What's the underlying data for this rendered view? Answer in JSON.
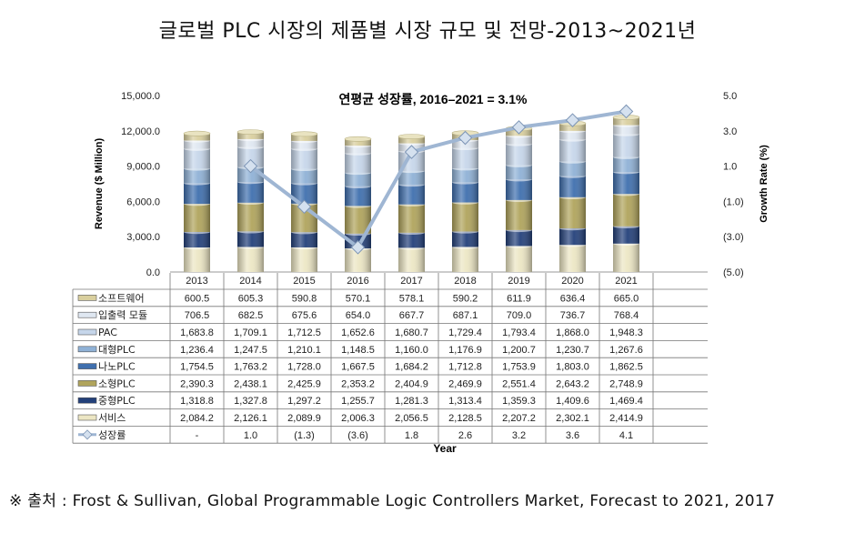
{
  "title": "글로벌 PLC 시장의 제품별 시장 규모 및 전망-2013~2021년",
  "source": "※ 출처 : Frost & Sullivan, Global Programmable Logic Controllers Market, Forecast to 2021, 2017",
  "chart_data": {
    "type": "bar",
    "stacked": true,
    "title": "연평균 성장률, 2016–2021 = 3.1%",
    "xlabel": "Year",
    "ylabel": "Revenue ($ Million)",
    "y2label": "Growth Rate (%)",
    "ylim": [
      0,
      15000
    ],
    "y2lim": [
      -5.0,
      5.0
    ],
    "y_ticks": [
      "15,000.0",
      "12,000.0",
      "9,000.0",
      "6,000.0",
      "3,000.0",
      "0.0"
    ],
    "y2_ticks": [
      "5.0",
      "3.0",
      "1.0",
      "(1.0)",
      "(3.0)",
      "(5.0)"
    ],
    "categories": [
      "2013",
      "2014",
      "2015",
      "2016",
      "2017",
      "2018",
      "2019",
      "2020",
      "2021"
    ],
    "series": [
      {
        "name": "소프트웨어",
        "color": "#d9cf9e",
        "values": [
          600.5,
          605.3,
          590.8,
          570.1,
          578.1,
          590.2,
          611.9,
          636.4,
          665.0
        ],
        "labels": [
          "600.5",
          "605.3",
          "590.8",
          "570.1",
          "578.1",
          "590.2",
          "611.9",
          "636.4",
          "665.0"
        ]
      },
      {
        "name": "입출력 모듈",
        "color": "#dfe7f1",
        "values": [
          706.5,
          682.5,
          675.6,
          654.0,
          667.7,
          687.1,
          709.0,
          736.7,
          768.4
        ],
        "labels": [
          "706.5",
          "682.5",
          "675.6",
          "654.0",
          "667.7",
          "687.1",
          "709.0",
          "736.7",
          "768.4"
        ]
      },
      {
        "name": "PAC",
        "color": "#c6d6ea",
        "values": [
          1683.8,
          1709.1,
          1712.5,
          1652.6,
          1680.7,
          1729.4,
          1793.4,
          1868.0,
          1948.3
        ],
        "labels": [
          "1,683.8",
          "1,709.1",
          "1,712.5",
          "1,652.6",
          "1,680.7",
          "1,729.4",
          "1,793.4",
          "1,868.0",
          "1,948.3"
        ]
      },
      {
        "name": "대형PLC",
        "color": "#8fb1d6",
        "values": [
          1236.4,
          1247.5,
          1210.1,
          1148.5,
          1160.0,
          1176.9,
          1200.7,
          1230.7,
          1267.6
        ],
        "labels": [
          "1,236.4",
          "1,247.5",
          "1,210.1",
          "1,148.5",
          "1,160.0",
          "1,176.9",
          "1,200.7",
          "1,230.7",
          "1,267.6"
        ]
      },
      {
        "name": "나노PLC",
        "color": "#3f6fae",
        "values": [
          1754.5,
          1763.2,
          1728.0,
          1667.5,
          1684.2,
          1712.8,
          1753.9,
          1803.0,
          1862.5
        ],
        "labels": [
          "1,754.5",
          "1,763.2",
          "1,728.0",
          "1,667.5",
          "1,684.2",
          "1,712.8",
          "1,753.9",
          "1,803.0",
          "1,862.5"
        ]
      },
      {
        "name": "소형PLC",
        "color": "#b0a45c",
        "values": [
          2390.3,
          2438.1,
          2425.9,
          2353.2,
          2404.9,
          2469.9,
          2551.4,
          2643.2,
          2748.9
        ],
        "labels": [
          "2,390.3",
          "2,438.1",
          "2,425.9",
          "2,353.2",
          "2,404.9",
          "2,469.9",
          "2,551.4",
          "2,643.2",
          "2,748.9"
        ]
      },
      {
        "name": "중형PLC",
        "color": "#23407a",
        "values": [
          1318.8,
          1327.8,
          1297.2,
          1255.7,
          1281.3,
          1313.4,
          1359.3,
          1409.6,
          1469.4
        ],
        "labels": [
          "1,318.8",
          "1,327.8",
          "1,297.2",
          "1,255.7",
          "1,281.3",
          "1,313.4",
          "1,359.3",
          "1,409.6",
          "1,469.4"
        ]
      },
      {
        "name": "서비스",
        "color": "#ece6c4",
        "values": [
          2084.2,
          2126.1,
          2089.9,
          2006.3,
          2056.5,
          2128.5,
          2207.2,
          2302.1,
          2414.9
        ],
        "labels": [
          "2,084.2",
          "2,126.1",
          "2,089.9",
          "2,006.3",
          "2,056.5",
          "2,128.5",
          "2,207.2",
          "2,302.1",
          "2,414.9"
        ]
      }
    ],
    "line": {
      "name": "성장률",
      "color": "#9fb6d3",
      "values": [
        null,
        1.0,
        -1.3,
        -3.6,
        1.8,
        2.6,
        3.2,
        3.6,
        4.1
      ],
      "labels": [
        "-",
        "1.0",
        "(1.3)",
        "(3.6)",
        "1.8",
        "2.6",
        "3.2",
        "3.6",
        "4.1"
      ]
    }
  }
}
